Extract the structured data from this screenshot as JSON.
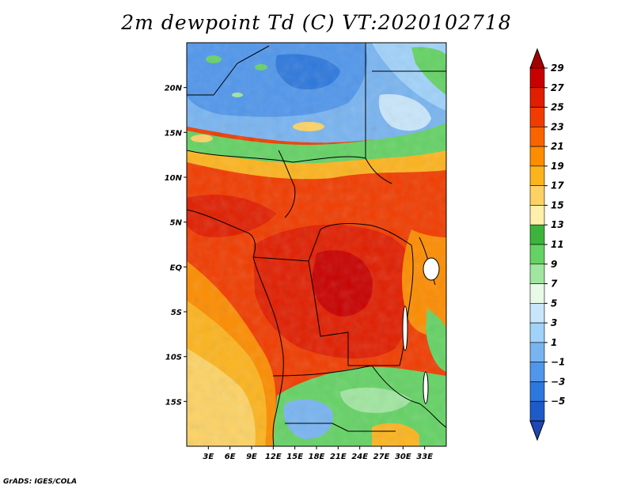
{
  "title": "2m dewpoint Td (C) VT:2020102718",
  "credit": "GrADS: IGES/COLA",
  "map": {
    "lon_range": [
      0,
      36
    ],
    "lat_range": [
      -20,
      25
    ],
    "lat_ticks": [
      {
        "value": 20,
        "label": "20N"
      },
      {
        "value": 15,
        "label": "15N"
      },
      {
        "value": 10,
        "label": "10N"
      },
      {
        "value": 5,
        "label": "5N"
      },
      {
        "value": 0,
        "label": "EQ"
      },
      {
        "value": -5,
        "label": "5S"
      },
      {
        "value": -10,
        "label": "10S"
      },
      {
        "value": -15,
        "label": "15S"
      }
    ],
    "lon_ticks": [
      {
        "value": 3,
        "label": "3E"
      },
      {
        "value": 6,
        "label": "6E"
      },
      {
        "value": 9,
        "label": "9E"
      },
      {
        "value": 12,
        "label": "12E"
      },
      {
        "value": 15,
        "label": "15E"
      },
      {
        "value": 18,
        "label": "18E"
      },
      {
        "value": 21,
        "label": "21E"
      },
      {
        "value": 24,
        "label": "24E"
      },
      {
        "value": 27,
        "label": "27E"
      },
      {
        "value": 30,
        "label": "30E"
      },
      {
        "value": 33,
        "label": "33E"
      }
    ]
  },
  "colorbar": {
    "labels": [
      "29",
      "27",
      "25",
      "23",
      "21",
      "19",
      "17",
      "15",
      "13",
      "11",
      "9",
      "7",
      "5",
      "3",
      "1",
      "−1",
      "−3",
      "−5"
    ],
    "colors": [
      "#a50000",
      "#c80000",
      "#e01e00",
      "#f03c00",
      "#f86400",
      "#fc8c00",
      "#fcb41e",
      "#fcd264",
      "#fcf0aa",
      "#3cb43c",
      "#64d264",
      "#a0e6a0",
      "#e6fae6",
      "#c8e6fa",
      "#a0d2fa",
      "#78b4f0",
      "#5096eb",
      "#2d78dc",
      "#1e5ac8",
      "#1e46b4"
    ]
  }
}
